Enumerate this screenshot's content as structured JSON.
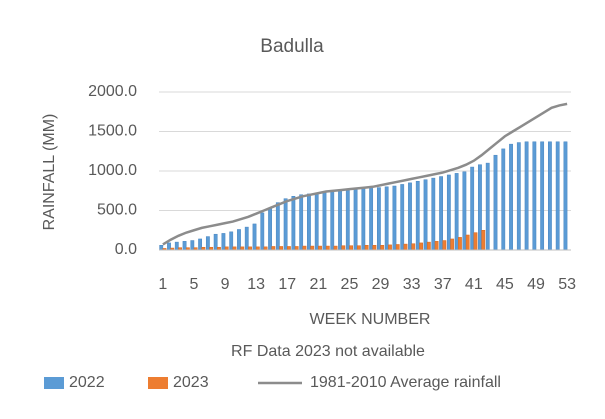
{
  "chart_data": {
    "type": "bar",
    "title": "Badulla",
    "y_label": "RAINFALL (MM)",
    "x_label": "WEEK NUMBER",
    "annotation": "RF Data 2023 not available",
    "categories": [
      "1",
      null,
      null,
      null,
      "5",
      null,
      null,
      null,
      "9",
      null,
      null,
      null,
      "13",
      null,
      null,
      null,
      "17",
      null,
      null,
      null,
      "21",
      null,
      null,
      null,
      "25",
      null,
      null,
      null,
      "29",
      null,
      null,
      null,
      "33",
      null,
      null,
      null,
      "37",
      null,
      null,
      null,
      "41",
      null,
      null,
      null,
      "45",
      null,
      null,
      null,
      "49",
      null,
      null,
      null,
      "53"
    ],
    "series": [
      {
        "name": "2022",
        "type": "bar",
        "color": "#5b9bd5",
        "values": [
          60,
          90,
          100,
          110,
          120,
          140,
          170,
          200,
          210,
          230,
          260,
          290,
          330,
          470,
          530,
          600,
          650,
          680,
          700,
          710,
          720,
          730,
          740,
          750,
          760,
          770,
          775,
          780,
          790,
          800,
          810,
          830,
          850,
          870,
          890,
          910,
          930,
          950,
          970,
          990,
          1050,
          1080,
          1100,
          1200,
          1280,
          1340,
          1360,
          1370,
          1370,
          1370,
          1370,
          1370,
          1370
        ]
      },
      {
        "name": "2023",
        "type": "bar",
        "color": "#ed7d31",
        "values": [
          20,
          25,
          30,
          30,
          30,
          35,
          35,
          35,
          40,
          40,
          40,
          40,
          40,
          40,
          45,
          45,
          45,
          45,
          50,
          50,
          50,
          50,
          50,
          55,
          55,
          55,
          60,
          60,
          60,
          65,
          70,
          75,
          80,
          90,
          100,
          110,
          120,
          140,
          160,
          190,
          220,
          250,
          null,
          null,
          null,
          null,
          null,
          null,
          null,
          null,
          null,
          null,
          null
        ]
      },
      {
        "name": "1981-2010 Average rainfall",
        "type": "line",
        "color": "#8c8c8c",
        "values": [
          70,
          130,
          180,
          220,
          250,
          280,
          300,
          320,
          340,
          360,
          390,
          420,
          460,
          500,
          540,
          580,
          620,
          650,
          680,
          700,
          720,
          740,
          750,
          760,
          770,
          780,
          790,
          800,
          820,
          840,
          860,
          880,
          900,
          920,
          940,
          960,
          980,
          1010,
          1040,
          1080,
          1130,
          1200,
          1280,
          1360,
          1440,
          1500,
          1560,
          1620,
          1680,
          1740,
          1800,
          1830,
          1850
        ]
      }
    ],
    "ylim": [
      0,
      2000
    ],
    "yticks": [
      {
        "value": 0,
        "label": "0.0"
      },
      {
        "value": 500,
        "label": "500.0"
      },
      {
        "value": 1000,
        "label": "1000.0"
      },
      {
        "value": 1500,
        "label": "1500.0"
      },
      {
        "value": 2000,
        "label": "2000.0"
      }
    ],
    "grid": true,
    "legend": "bottom"
  }
}
